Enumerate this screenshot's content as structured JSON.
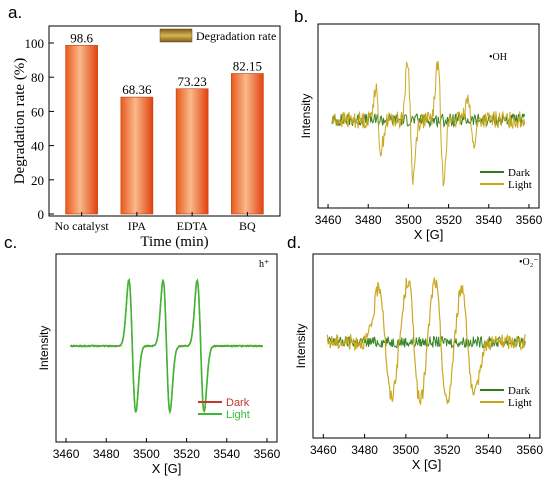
{
  "panels": {
    "a": {
      "letter": "a."
    },
    "b": {
      "letter": "b.",
      "species_label": "•OH"
    },
    "c": {
      "letter": "c.",
      "species_label": "h⁺"
    },
    "d": {
      "letter": "d.",
      "species_label": "•O₂⁻"
    }
  },
  "chart_data": [
    {
      "type": "bar",
      "panel": "a",
      "categories": [
        "No catalyst",
        "IPA",
        "EDTA",
        "BQ"
      ],
      "values": [
        98.6,
        68.36,
        73.23,
        82.15
      ],
      "data_labels": [
        "98.6",
        "68.36",
        "73.23",
        "82.15"
      ],
      "series": [
        {
          "name": "Degradation rate",
          "values": [
            98.6,
            68.36,
            73.23,
            82.15
          ]
        }
      ],
      "xlabel": "Time (min)",
      "ylabel": "Degradation rate (%)",
      "ylim": [
        0,
        100
      ],
      "yticks": [
        0,
        20,
        40,
        60,
        80,
        100
      ],
      "legend": "top-right",
      "colors": {
        "bar_light": "#f6a36b",
        "bar_dark": "#e84a12",
        "legend_swatch": "#c9a13e"
      }
    },
    {
      "type": "line",
      "panel": "b",
      "title_label": "•OH",
      "xlabel": "X [G]",
      "ylabel": "Intensity",
      "xlim": [
        3455,
        3565
      ],
      "xticks": [
        3460,
        3480,
        3500,
        3520,
        3540,
        3560
      ],
      "legend": "bottom-right",
      "series": [
        {
          "name": "Dark",
          "color": "#2e7d1a"
        },
        {
          "name": "Light",
          "color": "#c8a418",
          "peaks": [
            {
              "x": 3485,
              "a": 0.55
            },
            {
              "x": 3501,
              "a": 1.0
            },
            {
              "x": 3516,
              "a": 1.0
            },
            {
              "x": 3531,
              "a": 0.45
            }
          ]
        }
      ]
    },
    {
      "type": "line",
      "panel": "c",
      "title_label": "h⁺",
      "xlabel": "X [G]",
      "ylabel": "Intensity",
      "xlim": [
        3455,
        3565
      ],
      "xticks": [
        3460,
        3480,
        3500,
        3520,
        3540,
        3560
      ],
      "legend": "bottom-right",
      "series": [
        {
          "name": "Dark",
          "color": "#c0392b",
          "peaks": [
            {
              "x": 3493,
              "a": 1.0
            },
            {
              "x": 3510,
              "a": 1.0
            },
            {
              "x": 3527,
              "a": 1.0
            }
          ]
        },
        {
          "name": "Light",
          "color": "#39b934",
          "peaks": [
            {
              "x": 3493,
              "a": 1.0
            },
            {
              "x": 3510,
              "a": 1.0
            },
            {
              "x": 3527,
              "a": 1.0
            }
          ]
        }
      ]
    },
    {
      "type": "line",
      "panel": "d",
      "title_label": "•O₂⁻",
      "xlabel": "X [G]",
      "ylabel": "Intensity",
      "xlim": [
        3455,
        3565
      ],
      "xticks": [
        3460,
        3480,
        3500,
        3520,
        3540,
        3560
      ],
      "legend": "bottom-right",
      "series": [
        {
          "name": "Dark",
          "color": "#2e7d1a"
        },
        {
          "name": "Light",
          "color": "#c8a418",
          "peaks": [
            {
              "x": 3490,
              "a": 0.9
            },
            {
              "x": 3504,
              "a": 1.0
            },
            {
              "x": 3517,
              "a": 1.0
            },
            {
              "x": 3530,
              "a": 0.9
            }
          ]
        }
      ]
    }
  ]
}
